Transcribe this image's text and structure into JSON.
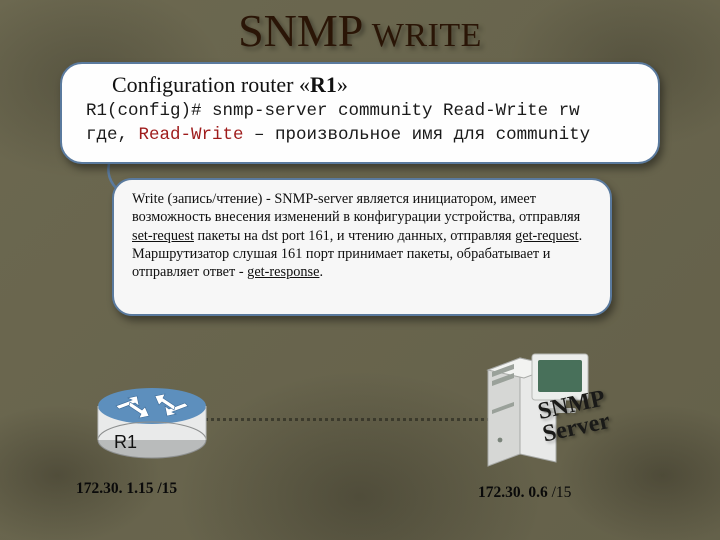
{
  "title_big": "SNMP",
  "title_small": " WRITE",
  "colors": {
    "background": "#6b6850",
    "box_border": "#5a7a9e",
    "box_bg": "#fefefe",
    "highlight_text": "#9e1b1b",
    "title_text": "#2a1506"
  },
  "code_box": {
    "heading_prefix": "Configuration router «",
    "heading_bold": "R1",
    "heading_suffix": "»",
    "line1": "R1(config)# snmp-server community Read-Write rw",
    "line2_pre": "где, ",
    "line2_hi": "Read-Write",
    "line2_post": " – произвольное имя для community"
  },
  "desc_box": {
    "text_parts": [
      {
        "t": "Write (запись/чтение) -  SNMP-server является инициатором, имеет возможность внесения изменений в конфигурации устройства, отправляя "
      },
      {
        "t": "set-request",
        "u": true
      },
      {
        "t": " пакеты на dst port 161, и чтению данных, отправляя "
      },
      {
        "t": "get-request",
        "u": true
      },
      {
        "t": ". Маршрутизатор слушая 161 порт принимает пакеты, обрабатывает и отправляет ответ - "
      },
      {
        "t": "get-response",
        "u": true
      },
      {
        "t": "."
      }
    ]
  },
  "router": {
    "label": "R1",
    "ip": "172.30. 1.15 /15",
    "body_color": "#e9eaea",
    "top_color": "#5d8fbd",
    "arrow_color": "#ffffff"
  },
  "server": {
    "label_line1": "SNMP",
    "label_line2": "Server",
    "ip_bold": "172.30. 0.6 ",
    "ip_mask": "/15",
    "box_color": "#e8e9e8",
    "front_color": "#d6d7d5",
    "slot_color": "#9aa19a"
  }
}
